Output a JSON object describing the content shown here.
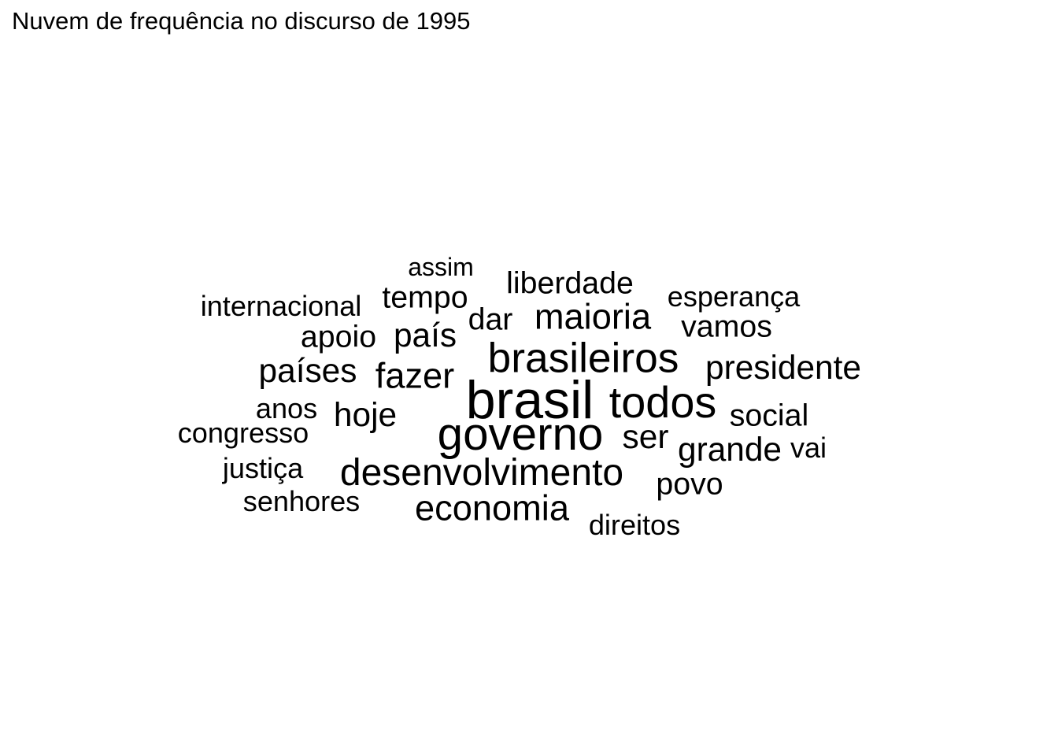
{
  "chart_data": {
    "type": "wordcloud",
    "title": "Nuvem de frequência no discurso de 1995",
    "words": [
      {
        "word": "brasil",
        "freq": 20
      },
      {
        "word": "governo",
        "freq": 16
      },
      {
        "word": "todos",
        "freq": 15
      },
      {
        "word": "brasileiros",
        "freq": 14
      },
      {
        "word": "desenvolvimento",
        "freq": 12
      },
      {
        "word": "maioria",
        "freq": 11
      },
      {
        "word": "economia",
        "freq": 11
      },
      {
        "word": "fazer",
        "freq": 11
      },
      {
        "word": "países",
        "freq": 10
      },
      {
        "word": "hoje",
        "freq": 10
      },
      {
        "word": "país",
        "freq": 10
      },
      {
        "word": "presidente",
        "freq": 10
      },
      {
        "word": "ser",
        "freq": 10
      },
      {
        "word": "grande",
        "freq": 10
      },
      {
        "word": "social",
        "freq": 9
      },
      {
        "word": "vamos",
        "freq": 9
      },
      {
        "word": "dar",
        "freq": 9
      },
      {
        "word": "tempo",
        "freq": 9
      },
      {
        "word": "liberdade",
        "freq": 9
      },
      {
        "word": "apoio",
        "freq": 9
      },
      {
        "word": "povo",
        "freq": 9
      },
      {
        "word": "esperança",
        "freq": 8
      },
      {
        "word": "internacional",
        "freq": 8
      },
      {
        "word": "senhores",
        "freq": 8
      },
      {
        "word": "congresso",
        "freq": 8
      },
      {
        "word": "justiça",
        "freq": 8
      },
      {
        "word": "direitos",
        "freq": 8
      },
      {
        "word": "anos",
        "freq": 8
      },
      {
        "word": "vai",
        "freq": 8
      },
      {
        "word": "assim",
        "freq": 7
      }
    ]
  }
}
